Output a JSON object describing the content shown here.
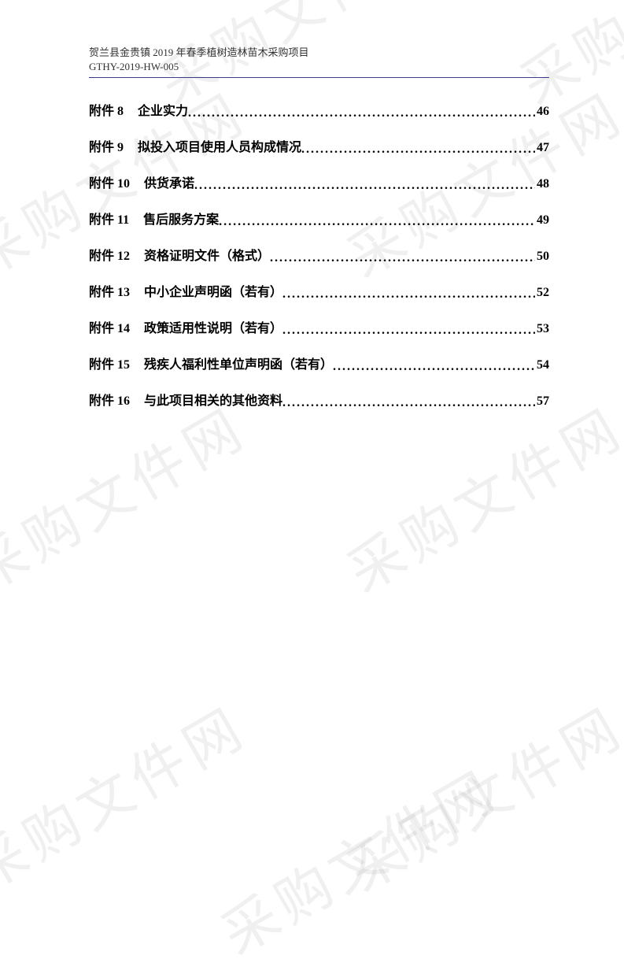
{
  "watermark_text": "采购文件网",
  "header": {
    "line1": "贺兰县金贵镇 2019 年春季植树造林苗木采购项目",
    "line2": "GTHY-2019-HW-005"
  },
  "colors": {
    "background": "#ffffff",
    "text": "#000000",
    "header_text": "#333333",
    "rule": "#3a3a8a",
    "watermark": "rgba(128,128,128,0.12)"
  },
  "typography": {
    "body_family": "SimSun, 宋体, serif",
    "watermark_family": "KaiTi, 楷体, serif",
    "header_fontsize": 13,
    "toc_fontsize": 16,
    "toc_fontweight": "bold",
    "watermark_fontsize": 70,
    "toc_line_spacing": 22
  },
  "toc": {
    "items": [
      {
        "label": "附件 8",
        "title": "企业实力",
        "page": "46"
      },
      {
        "label": "附件 9",
        "title": "拟投入项目使用人员构成情况",
        "page": "47"
      },
      {
        "label": "附件 10",
        "title": "供货承诺",
        "page": "48"
      },
      {
        "label": "附件 11",
        "title": "售后服务方案",
        "page": "49"
      },
      {
        "label": "附件 12",
        "title": "资格证明文件（格式）",
        "page": "50"
      },
      {
        "label": "附件 13",
        "title": "中小企业声明函（若有）",
        "page": "52"
      },
      {
        "label": "附件 14",
        "title": "政策适用性说明（若有）",
        "page": "53"
      },
      {
        "label": "附件 15",
        "title": "残疾人福利性单位声明函（若有）",
        "page": "54"
      },
      {
        "label": "附件 16",
        "title": "与此项目相关的其他资料",
        "page": "57"
      }
    ]
  }
}
